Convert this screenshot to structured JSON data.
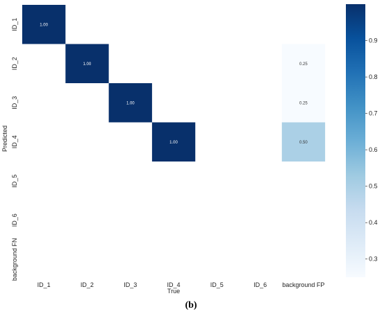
{
  "chart_data": {
    "type": "heatmap",
    "x_categories": [
      "ID_1",
      "ID_2",
      "ID_3",
      "ID_4",
      "ID_5",
      "ID_6",
      "background FP"
    ],
    "y_categories": [
      "ID_1",
      "ID_2",
      "ID_3",
      "ID_4",
      "ID_5",
      "ID_6",
      "background FN"
    ],
    "xlabel": "True",
    "ylabel": "Predicted",
    "cells": [
      {
        "row": 0,
        "col": 0,
        "value": 1.0,
        "label": "1.00"
      },
      {
        "row": 1,
        "col": 1,
        "value": 1.0,
        "label": "1.00"
      },
      {
        "row": 2,
        "col": 2,
        "value": 1.0,
        "label": "1.00"
      },
      {
        "row": 3,
        "col": 3,
        "value": 1.0,
        "label": "1.00"
      },
      {
        "row": 1,
        "col": 6,
        "value": 0.25,
        "label": "0.25"
      },
      {
        "row": 2,
        "col": 6,
        "value": 0.25,
        "label": "0.25"
      },
      {
        "row": 3,
        "col": 6,
        "value": 0.5,
        "label": "0.50"
      }
    ],
    "colorbar": {
      "range": [
        0.25,
        1.0
      ],
      "ticks": [
        "0.3",
        "0.4",
        "0.5",
        "0.6",
        "0.7",
        "0.8",
        "0.9"
      ],
      "colormap": "Blues"
    }
  },
  "caption": "(b)"
}
